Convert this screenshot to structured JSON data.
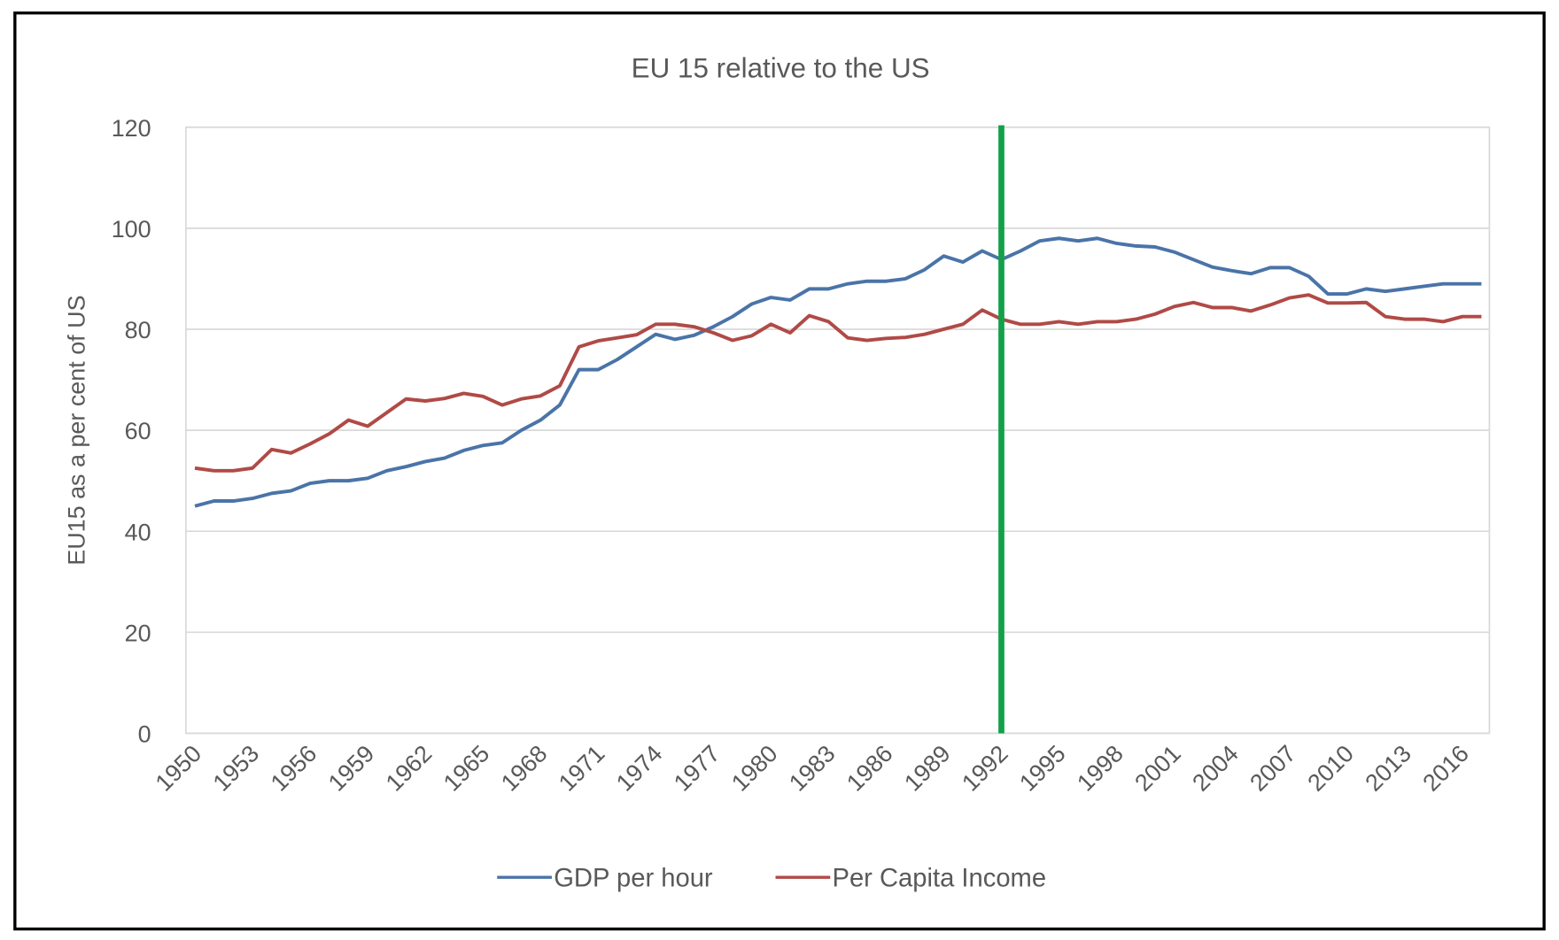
{
  "chart_data": {
    "type": "line",
    "title": "EU 15 relative to the US",
    "xlabel": "",
    "ylabel": "EU15 as a per cent of US",
    "ylim": [
      0,
      120
    ],
    "yticks": [
      0,
      20,
      40,
      60,
      80,
      100,
      120
    ],
    "xtick_labels": [
      "1950",
      "1953",
      "1956",
      "1959",
      "1962",
      "1965",
      "1968",
      "1971",
      "1974",
      "1977",
      "1980",
      "1983",
      "1986",
      "1989",
      "1992",
      "1995",
      "1998",
      "2001",
      "2004",
      "2007",
      "2010",
      "2013",
      "2016"
    ],
    "grid": true,
    "legend_position": "bottom",
    "x_start": 1950,
    "x_end": 2017,
    "vertical_marker": {
      "x": 1992,
      "color": "#13A049"
    },
    "series": [
      {
        "name": "GDP per hour",
        "color": "#4A74A8",
        "values": [
          45,
          46,
          46,
          46.5,
          47.5,
          48,
          49.5,
          50,
          50,
          50.5,
          52,
          52.8,
          53.8,
          54.5,
          56,
          57,
          57.5,
          60,
          62,
          65,
          72,
          72,
          74,
          76.5,
          79,
          78,
          78.8,
          80.5,
          82.5,
          85,
          86.3,
          85.8,
          88,
          88,
          89,
          89.5,
          89.5,
          90,
          91.8,
          94.5,
          93.3,
          95.5,
          93.8,
          95.5,
          97.5,
          98,
          97.5,
          98,
          97,
          96.5,
          96.3,
          95.3,
          93.8,
          92.3,
          91.6,
          91,
          92.2,
          92.2,
          90.5,
          87,
          87,
          88,
          87.5,
          88,
          88.5,
          89,
          89,
          89
        ]
      },
      {
        "name": "Per Capita Income",
        "color": "#B04A46",
        "values": [
          52.5,
          52,
          52,
          52.5,
          56.2,
          55.5,
          57.3,
          59.3,
          62,
          60.8,
          63.5,
          66.2,
          65.8,
          66.3,
          67.3,
          66.7,
          65,
          66.2,
          66.8,
          68.8,
          76.5,
          77.7,
          78.3,
          78.9,
          81,
          81,
          80.5,
          79.3,
          77.8,
          78.7,
          81,
          79.3,
          82.7,
          81.5,
          78.3,
          77.8,
          78.2,
          78.4,
          79,
          80,
          81,
          83.8,
          82,
          81,
          81,
          81.5,
          81,
          81.5,
          81.5,
          82,
          83,
          84.5,
          85.3,
          84.3,
          84.3,
          83.6,
          84.8,
          86.2,
          86.8,
          85.2,
          85.2,
          85.3,
          82.5,
          82,
          82,
          81.5,
          82.5,
          82.5
        ]
      }
    ]
  }
}
